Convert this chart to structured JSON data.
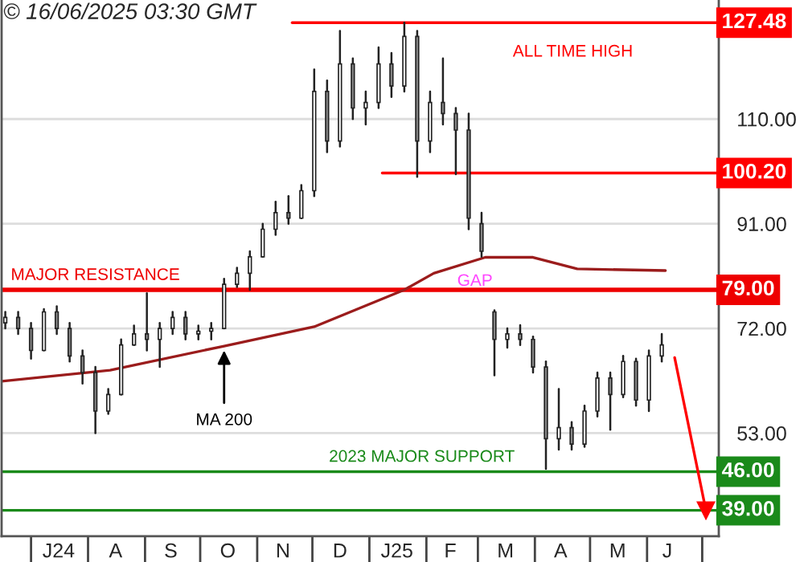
{
  "chart_data": {
    "type": "candlestick",
    "title": "© 16/06/2025 03:30 GMT",
    "x": [
      "2024-06-17",
      "2024-06-24",
      "2024-07-01",
      "2024-07-08",
      "2024-07-15",
      "2024-07-22",
      "2024-07-29",
      "2024-08-05",
      "2024-08-12",
      "2024-08-19",
      "2024-08-26",
      "2024-09-02",
      "2024-09-09",
      "2024-09-16",
      "2024-09-23",
      "2024-09-30",
      "2024-10-07",
      "2024-10-14",
      "2024-10-21",
      "2024-10-28",
      "2024-11-04",
      "2024-11-11",
      "2024-11-18",
      "2024-11-25",
      "2024-12-02",
      "2024-12-09",
      "2024-12-16",
      "2024-12-23",
      "2024-12-30",
      "2025-01-06",
      "2025-01-13",
      "2025-01-20",
      "2025-01-27",
      "2025-02-03",
      "2025-02-10",
      "2025-02-17",
      "2025-02-24",
      "2025-03-03",
      "2025-03-10",
      "2025-03-17",
      "2025-03-24",
      "2025-03-31",
      "2025-04-07",
      "2025-04-14",
      "2025-04-21",
      "2025-04-28",
      "2025-05-05",
      "2025-05-12",
      "2025-05-19",
      "2025-05-26",
      "2025-06-02",
      "2025-06-09"
    ],
    "ohlc": [
      [
        73,
        75,
        72,
        74
      ],
      [
        74,
        75,
        71,
        72
      ],
      [
        72,
        73,
        66.5,
        68
      ],
      [
        68,
        75.5,
        68,
        75
      ],
      [
        75,
        76,
        71,
        72
      ],
      [
        72,
        73,
        66,
        67
      ],
      [
        67,
        68,
        62,
        64
      ],
      [
        64,
        65,
        53,
        57
      ],
      [
        57,
        61,
        56.5,
        60
      ],
      [
        60,
        70,
        60,
        69
      ],
      [
        69,
        72.5,
        69,
        71
      ],
      [
        71,
        78.4,
        68,
        70
      ],
      [
        70,
        73,
        65,
        72
      ],
      [
        72,
        75,
        71,
        74
      ],
      [
        74,
        75,
        70,
        71
      ],
      [
        71,
        72.5,
        70,
        71.5
      ],
      [
        71.5,
        73,
        70,
        72
      ],
      [
        72,
        81,
        72,
        80
      ],
      [
        80,
        83,
        79.5,
        82
      ],
      [
        82,
        86,
        79,
        85
      ],
      [
        85,
        91,
        85,
        90
      ],
      [
        90,
        95,
        89,
        93
      ],
      [
        93,
        96,
        91,
        92
      ],
      [
        92,
        98,
        92,
        97
      ],
      [
        97,
        119,
        96,
        115
      ],
      [
        115,
        117,
        104,
        106
      ],
      [
        106,
        126,
        105,
        120
      ],
      [
        120,
        121,
        110,
        112
      ],
      [
        112,
        115,
        109,
        113
      ],
      [
        113,
        123,
        112,
        120
      ],
      [
        120,
        122,
        114,
        116
      ],
      [
        116,
        127.48,
        115,
        125
      ],
      [
        125,
        126,
        99.5,
        106
      ],
      [
        106,
        115,
        104,
        113
      ],
      [
        113,
        121,
        109,
        111
      ],
      [
        111,
        112,
        100,
        108
      ],
      [
        108,
        111,
        90,
        92
      ],
      [
        91,
        93,
        85,
        86
      ],
      [
        75,
        75.3,
        63.5,
        70
      ],
      [
        70,
        72,
        68.5,
        71
      ],
      [
        71,
        72.6,
        69,
        70
      ],
      [
        70,
        70.5,
        64,
        65
      ],
      [
        65,
        66,
        46.5,
        52
      ],
      [
        52,
        61,
        50,
        54
      ],
      [
        54,
        55,
        50,
        51
      ],
      [
        51,
        58,
        50.5,
        57
      ],
      [
        57,
        64,
        56,
        63
      ],
      [
        63,
        64,
        53.6,
        60
      ],
      [
        60,
        67,
        59.5,
        66
      ],
      [
        66,
        66.5,
        58,
        59
      ],
      [
        59,
        68,
        57,
        67
      ],
      [
        67,
        71,
        66,
        69
      ]
    ],
    "color": "#222222",
    "series": [
      {
        "type": "line",
        "color": "#9b1c1c",
        "x": [
          "2024-06-15",
          "2024-08-13",
          "2024-10-14",
          "2024-12-02",
          "2025-01-20",
          "2025-02-05",
          "2025-03-05",
          "2025-03-31",
          "2025-04-24",
          "2025-06-11"
        ],
        "values": [
          62.4,
          64.4,
          68.8,
          72.3,
          79,
          82,
          84.9,
          84.9,
          82.8,
          82.5
        ]
      },
      {
        "type": "line",
        "color": "#ff0000",
        "marker": "triangle",
        "x": [
          "2025-06-16",
          "2025-07-03"
        ],
        "values": [
          66.7,
          39
        ]
      },
      {
        "type": "line",
        "color": "#ff0000",
        "x": [
          "2024-11-20",
          "2025-07-10"
        ],
        "values": [
          127.48,
          127.48
        ],
        "value_labels": [
          null,
          "127.48"
        ]
      },
      {
        "type": "line",
        "color": "#ff0000",
        "x": [
          "2025-01-08",
          "2025-07-10"
        ],
        "values": [
          100.2,
          100.2
        ],
        "value_labels": [
          null,
          "100.20"
        ]
      }
    ],
    "ref_lines": [
      {
        "axis": "y",
        "value": 79,
        "label": "79.00",
        "color": "#ee0000"
      },
      {
        "axis": "y",
        "value": 46,
        "label": "46.00",
        "color": "#1a8a1a"
      },
      {
        "axis": "y",
        "value": 39,
        "label": "39.00",
        "color": "#1a8a1a"
      }
    ],
    "annotations": [
      {
        "text": "MA 200",
        "x": "2024-10-14",
        "y": 68.8
      },
      "GAP",
      {
        "text": "ALL TIME HIGH",
        "x": "2025-03-20",
        "y": 127.48
      },
      {
        "text": "MAJOR RESISTANCE",
        "x": "2024-06-20",
        "y": 79
      },
      {
        "text": "2023 MAJOR SUPPORT",
        "x": "2024-12-10",
        "y": 46
      }
    ],
    "xlim": [
      "2024-06-15",
      "2025-07-10"
    ],
    "xticks": [
      {
        "value": "2024-07-16",
        "label": "J24"
      },
      {
        "value": "2024-08-16",
        "label": "A"
      },
      {
        "value": "2024-09-15",
        "label": "S"
      },
      {
        "value": "2024-10-16",
        "label": "O"
      },
      {
        "value": "2024-11-15",
        "label": "N"
      },
      {
        "value": "2024-12-16",
        "label": "D"
      },
      {
        "value": "2025-01-16",
        "label": "J25"
      },
      {
        "value": "2025-02-14",
        "label": "F"
      },
      {
        "value": "2025-03-16",
        "label": "M"
      },
      {
        "value": "2025-04-15",
        "label": "A"
      },
      {
        "value": "2025-05-16",
        "label": "M"
      },
      {
        "value": "2025-06-12",
        "label": "J"
      }
    ],
    "ylim": [
      34.3,
      131.6
    ],
    "yticks": [
      {
        "value": 53,
        "label": "53.00"
      },
      {
        "value": 72,
        "label": "72.00"
      },
      {
        "value": 91,
        "label": "91.00"
      },
      {
        "value": 110,
        "label": "110.00"
      }
    ],
    "grid": "y"
  }
}
